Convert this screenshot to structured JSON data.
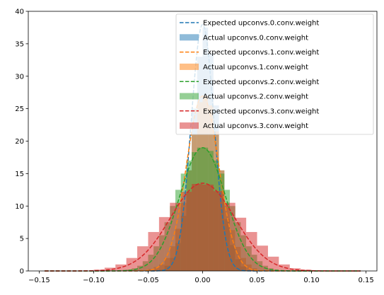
{
  "chart_data": {
    "type": "histogram",
    "title": "",
    "xlabel": "",
    "ylabel": "",
    "xlim": [
      -0.16,
      0.16
    ],
    "ylim": [
      0,
      40
    ],
    "x_ticks": [
      -0.15,
      -0.1,
      -0.05,
      0.0,
      0.05,
      0.1,
      0.15
    ],
    "x_tick_labels": [
      "−0.15",
      "−0.10",
      "−0.05",
      "0.00",
      "0.05",
      "0.10",
      "0.15"
    ],
    "y_ticks": [
      0,
      5,
      10,
      15,
      20,
      25,
      30,
      35,
      40
    ],
    "y_tick_labels": [
      "0",
      "5",
      "10",
      "15",
      "20",
      "25",
      "30",
      "35",
      "40"
    ],
    "grid": false,
    "legend_position": "top-right",
    "series": [
      {
        "key": "s0",
        "expected_name": "Expected upconvs.0.conv.weight",
        "actual_name": "Actual upconvs.0.conv.weight",
        "color": "#1f77b4",
        "expected_std": 0.0105,
        "actual_bins": {
          "edges": [
            -0.04,
            -0.035,
            -0.03,
            -0.025,
            -0.02,
            -0.015,
            -0.01,
            -0.005,
            0.0,
            0.005,
            0.01,
            0.015,
            0.02,
            0.025,
            0.03,
            0.035,
            0.04
          ],
          "values": [
            0.2,
            0.8,
            2.0,
            4.3,
            8.5,
            15.5,
            25.0,
            33.0,
            37.5,
            33.5,
            25.5,
            15.5,
            8.0,
            4.0,
            1.8,
            0.7
          ]
        }
      },
      {
        "key": "s1",
        "expected_name": "Expected upconvs.1.conv.weight",
        "actual_name": "Actual upconvs.1.conv.weight",
        "color": "#ff7f0e",
        "expected_std": 0.0148,
        "actual_bins": {
          "edges": [
            -0.05,
            -0.045,
            -0.04,
            -0.035,
            -0.03,
            -0.025,
            -0.02,
            -0.015,
            -0.01,
            -0.005,
            0.0,
            0.005,
            0.01,
            0.015,
            0.02,
            0.025,
            0.03,
            0.035,
            0.04,
            0.045,
            0.05
          ],
          "values": [
            0.3,
            0.6,
            1.0,
            2.0,
            3.8,
            6.5,
            10.5,
            15.5,
            21.0,
            26.0,
            27.0,
            25.5,
            21.5,
            15.5,
            10.0,
            6.3,
            3.7,
            2.0,
            1.0,
            0.4
          ]
        }
      },
      {
        "key": "s2",
        "expected_name": "Expected upconvs.2.conv.weight",
        "actual_name": "Actual upconvs.2.conv.weight",
        "color": "#2ca02c",
        "expected_std": 0.021,
        "actual_bins": {
          "edges": [
            -0.07,
            -0.065,
            -0.06,
            -0.055,
            -0.05,
            -0.045,
            -0.04,
            -0.035,
            -0.03,
            -0.025,
            -0.02,
            -0.015,
            -0.01,
            -0.005,
            0.0,
            0.005,
            0.01,
            0.015,
            0.02,
            0.025,
            0.03,
            0.035,
            0.04,
            0.045,
            0.05,
            0.055,
            0.06,
            0.065,
            0.07
          ],
          "values": [
            0.2,
            0.4,
            0.8,
            1.5,
            2.5,
            3.8,
            5.5,
            7.5,
            10.0,
            12.5,
            15.0,
            17.0,
            18.3,
            19.0,
            19.0,
            18.5,
            17.0,
            15.0,
            12.5,
            10.0,
            7.5,
            5.5,
            3.8,
            2.5,
            1.5,
            0.8,
            0.4,
            0.2
          ]
        }
      },
      {
        "key": "s3",
        "expected_name": "Expected upconvs.3.conv.weight",
        "actual_name": "Actual upconvs.3.conv.weight",
        "color": "#d62728",
        "expected_std": 0.0295,
        "actual_bins": {
          "edges": [
            -0.1,
            -0.09,
            -0.08,
            -0.07,
            -0.06,
            -0.05,
            -0.04,
            -0.03,
            -0.02,
            -0.01,
            0.0,
            0.01,
            0.02,
            0.03,
            0.04,
            0.05,
            0.06,
            0.07,
            0.08,
            0.09,
            0.1
          ],
          "values": [
            0.2,
            0.5,
            1.0,
            2.0,
            3.8,
            6.0,
            8.3,
            10.5,
            12.2,
            13.4,
            13.3,
            12.3,
            10.5,
            8.2,
            6.0,
            3.9,
            2.2,
            1.0,
            0.4,
            0.2
          ]
        }
      }
    ]
  }
}
